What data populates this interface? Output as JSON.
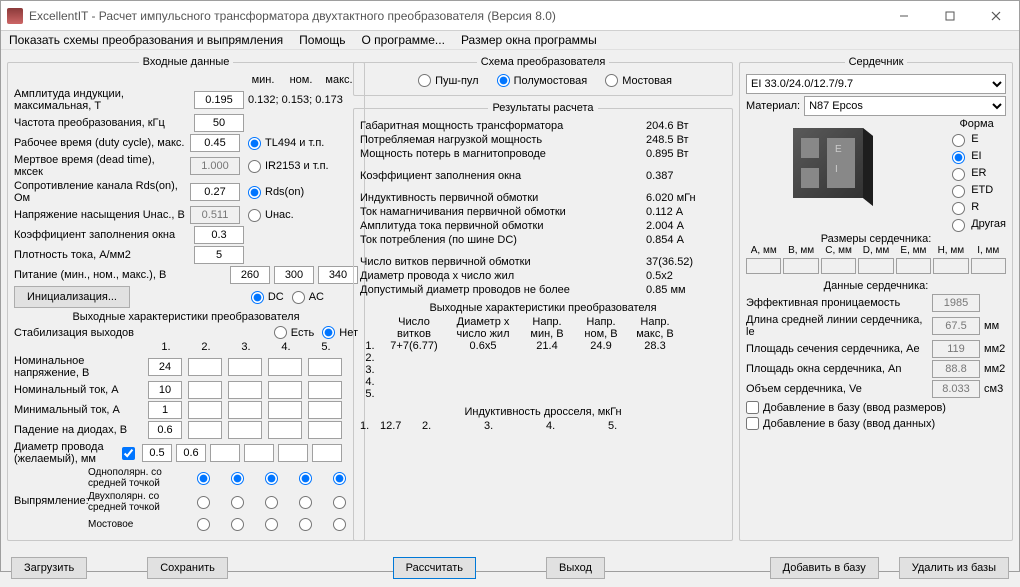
{
  "window": {
    "title": "ExcellentIT - Расчет импульсного трансформатора двухтактного преобразователя (Версия 8.0)"
  },
  "menubar": {
    "items": [
      "Показать схемы преобразования и выпрямления",
      "Помощь",
      "О программе...",
      "Размер окна программы"
    ]
  },
  "input_panel": {
    "title": "Входные данные",
    "min_nom_max_hdr": [
      "мин.",
      "ном.",
      "макс."
    ],
    "rows": {
      "b_label": "Амплитуда индукции, максимальная, T",
      "b_val": "0.195",
      "b_ref": "0.132; 0.153; 0.173",
      "freq_label": "Частота преобразования, кГц",
      "freq_val": "50",
      "duty_label": "Рабочее время (duty cycle), макс.",
      "duty_val": "0.45",
      "duty_opt": "TL494 и т.п.",
      "dead_label": "Мертвое время (dead time), мксек",
      "dead_val": "1.000",
      "dead_opt": "IR2153 и т.п.",
      "rds_label": "Сопротивление канала Rds(on), Ом",
      "rds_val": "0.27",
      "rds_opt": "Rds(on)",
      "unas_label": "Напряжение насыщения Uнас., В",
      "unas_val": "0.511",
      "unas_opt": "Uнас.",
      "kfill_label": "Коэффициент заполнения окна",
      "kfill_val": "0.3",
      "jdens_label": "Плотность тока, А/мм2",
      "jdens_val": "5",
      "supply_label": "Питание (мин., ном., макс.), В",
      "supply": [
        "260",
        "300",
        "340"
      ],
      "init_btn": "Инициализация...",
      "dc": "DC",
      "ac": "AC"
    },
    "out_title": "Выходные характеристики преобразователя",
    "stab_label": "Стабилизация выходов",
    "stab_yes": "Есть",
    "stab_no": "Нет",
    "cols": [
      "1.",
      "2.",
      "3.",
      "4.",
      "5."
    ],
    "v_label": "Номинальное напряжение, В",
    "v": [
      "24",
      "",
      "",
      "",
      ""
    ],
    "inom_label": "Номинальный ток, А",
    "inom": [
      "10",
      "",
      "",
      "",
      ""
    ],
    "imin_label": "Минимальный ток, А",
    "imin": [
      "1",
      "",
      "",
      "",
      ""
    ],
    "vdrop_label": "Падение на диодах, В",
    "vdrop": [
      "0.6",
      "",
      "",
      "",
      ""
    ],
    "wire_label": "Диаметр провода (желаемый), мм",
    "wire_chk": true,
    "wire": [
      "0.5",
      "0.6",
      "",
      "",
      "",
      ""
    ],
    "rect_label": "Выпрямление:",
    "rect_rows": [
      "Однополярн. со средней точкой",
      "Двухполярн. со средней точкой",
      "Мостовое"
    ]
  },
  "scheme_panel": {
    "title": "Схема преобразователя",
    "opts": [
      "Пуш-пул",
      "Полумостовая",
      "Мостовая"
    ],
    "selected": 1
  },
  "results_panel": {
    "title": "Результаты расчета",
    "lines": [
      [
        "Габаритная мощность трансформатора",
        "204.6 Вт"
      ],
      [
        "Потребляемая нагрузкой мощность",
        "248.5 Вт"
      ],
      [
        "Мощность потерь в магнитопроводе",
        "0.895 Вт"
      ],
      [
        "Коэффициент заполнения окна",
        "0.387"
      ],
      [
        "Индуктивность первичной обмотки",
        "6.020 мГн"
      ],
      [
        "Ток намагничивания первичной обмотки",
        "0.112 А"
      ],
      [
        "Амплитуда тока первичной обмотки",
        "2.004 А"
      ],
      [
        "Ток потребления (по шине DC)",
        "0.854 А"
      ],
      [
        "Число витков первичной обмотки",
        "37(36.52)"
      ],
      [
        "Диаметр провода х число жил",
        "0.5х2"
      ],
      [
        "Допустимый диаметр проводов не более",
        "0.85 мм"
      ]
    ],
    "out_title": "Выходные характеристики преобразователя",
    "out_hdr": [
      "",
      "Число витков",
      "Диаметр x число жил",
      "Напр. мин, В",
      "Напр. ном, В",
      "Напр. макс, В"
    ],
    "out_rows": [
      [
        "1.",
        "7+7(6.77)",
        "0.6х5",
        "21.4",
        "24.9",
        "28.3"
      ],
      [
        "2.",
        "",
        "",
        "",
        "",
        ""
      ],
      [
        "3.",
        "",
        "",
        "",
        "",
        ""
      ],
      [
        "4.",
        "",
        "",
        "",
        "",
        ""
      ],
      [
        "5.",
        "",
        "",
        "",
        "",
        ""
      ]
    ],
    "ind_title": "Индуктивность дросселя, мкГн",
    "ind": [
      "1.",
      "12.7",
      "2.",
      "",
      "3.",
      "",
      "4.",
      "",
      "5.",
      ""
    ]
  },
  "core_panel": {
    "title": "Сердечник",
    "core_select": "EI 33.0/24.0/12.7/9.7",
    "mat_label": "Материал:",
    "mat_select": "N87 Epcos",
    "shape_label": "Форма",
    "shapes": [
      "E",
      "EI",
      "ER",
      "ETD",
      "R",
      "Другая"
    ],
    "shape_selected": 1,
    "dims_title": "Размеры сердечника:",
    "dims_hdr": [
      "A, мм",
      "B, мм",
      "C, мм",
      "D, мм",
      "E, мм",
      "H, мм",
      "I, мм"
    ],
    "data_title": "Данные сердечника:",
    "perm_label": "Эффективная проницаемость",
    "perm": "1985",
    "le_label": "Длина средней линии сердечника, le",
    "le": "67.5",
    "le_u": "мм",
    "ae_label": "Площадь сечения сердечника, Ae",
    "ae": "119",
    "ae_u": "мм2",
    "an_label": "Площадь окна сердечника, An",
    "an": "88.8",
    "an_u": "мм2",
    "ve_label": "Объем сердечника, Ve",
    "ve": "8.033",
    "ve_u": "см3",
    "chk1": "Добавление в базу (ввод размеров)",
    "chk2": "Добавление в базу (ввод данных)"
  },
  "buttons": {
    "load": "Загрузить",
    "save": "Сохранить",
    "calc": "Рассчитать",
    "exit": "Выход",
    "add_db": "Добавить в базу",
    "del_db": "Удалить из базы"
  }
}
